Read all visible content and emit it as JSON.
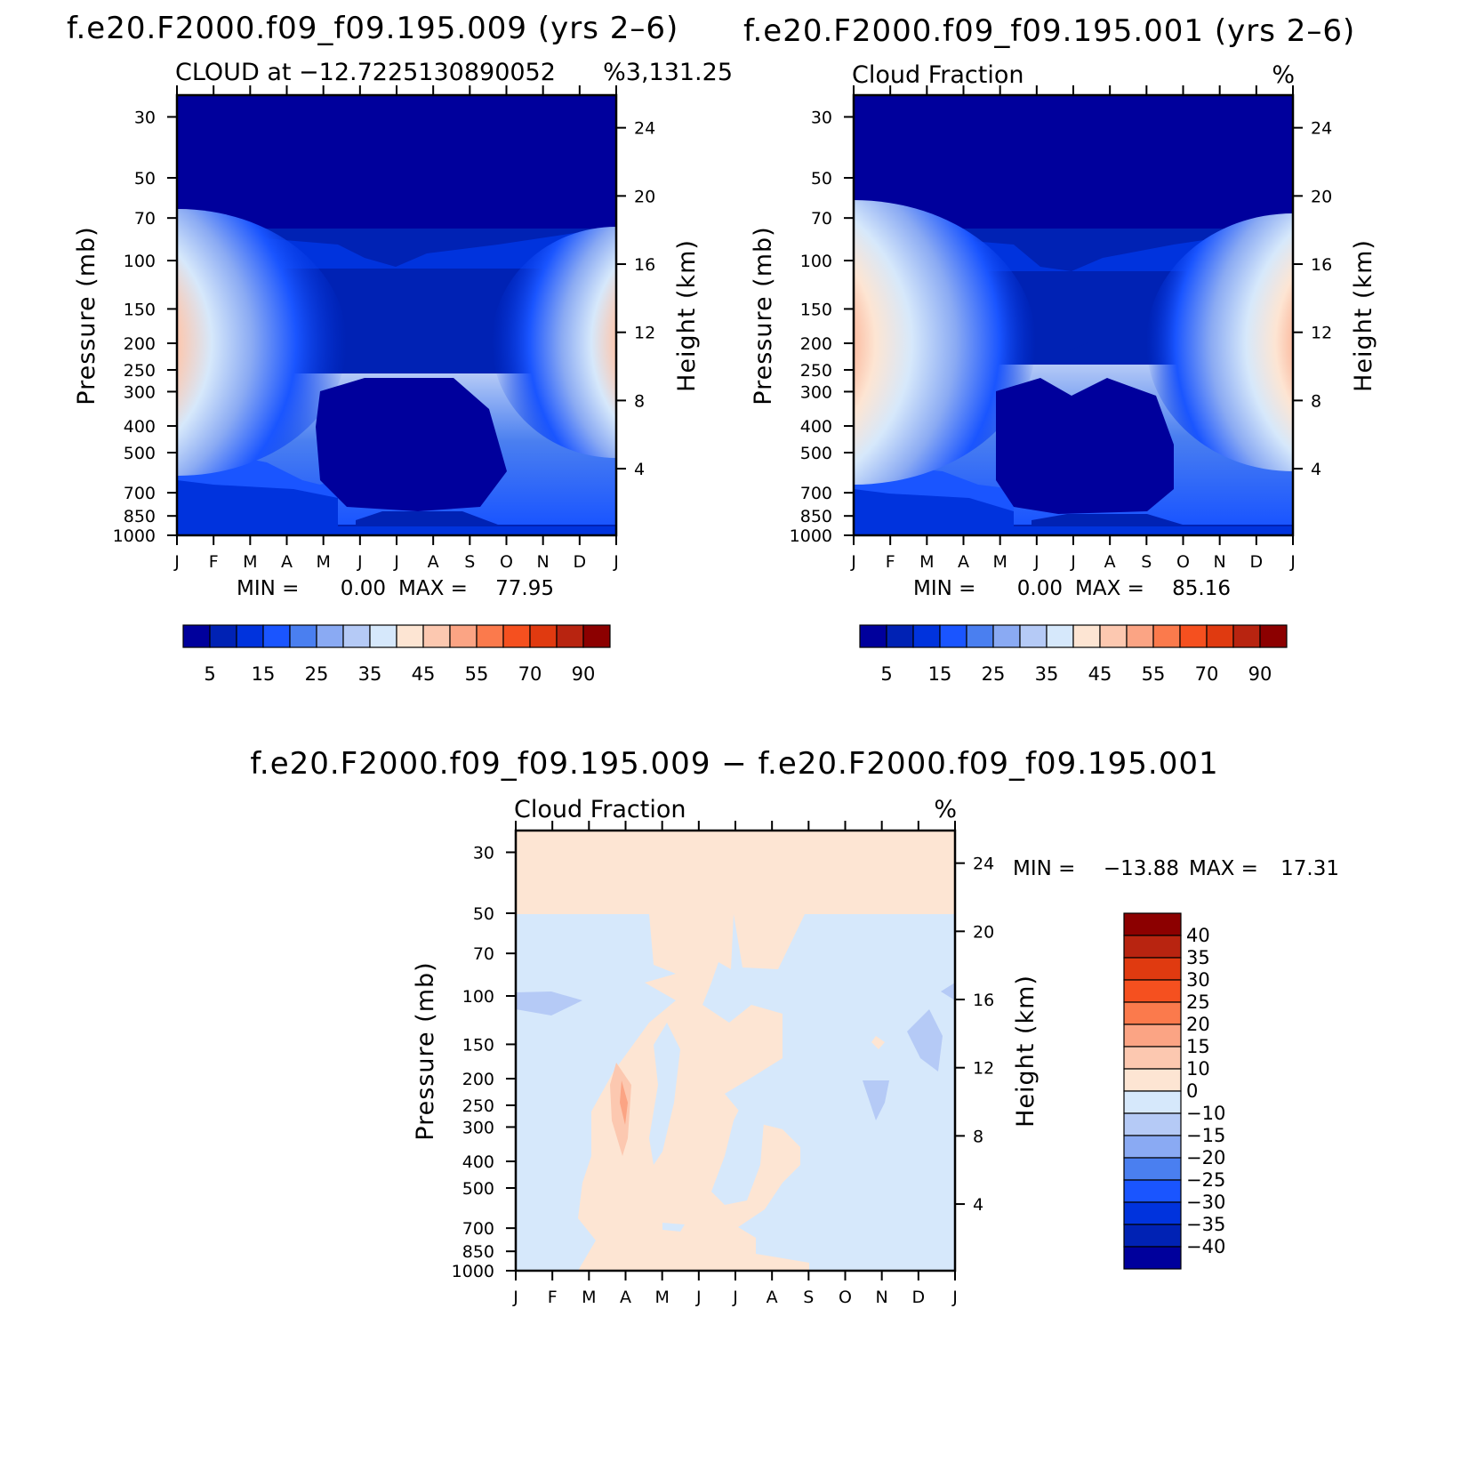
{
  "colors": {
    "pos_levels": [
      "#00009c",
      "#0022b4",
      "#0033dd",
      "#1a55ff",
      "#4a7ff0",
      "#8aaaf3",
      "#b5caf6",
      "#d6e8fb",
      "#fde5d3",
      "#fcc8b0",
      "#fba484",
      "#fb7a4c",
      "#f5501f",
      "#e03a10",
      "#b82410",
      "#8c0000"
    ],
    "diff_levels": [
      "#00009c",
      "#0022b4",
      "#0033dd",
      "#1a55ff",
      "#4a7ff0",
      "#8aaaf3",
      "#b5caf6",
      "#d6e8fb",
      "#fde5d3",
      "#fcc8b0",
      "#fba484",
      "#fb7a4c",
      "#f5501f",
      "#e03a10",
      "#b82410",
      "#8c0000"
    ]
  },
  "chart_data": [
    {
      "type": "heatmap",
      "title": "f.e20.F2000.f09_f09.195.009 (yrs 2–6)",
      "left_label": "CLOUD at −12.7225130890052",
      "right_label": "%3,131.25",
      "ylabel": "Pressure (mb)",
      "y2label": "Height (km)",
      "months": [
        "J",
        "F",
        "M",
        "A",
        "M",
        "J",
        "J",
        "A",
        "S",
        "O",
        "N",
        "D",
        "J"
      ],
      "pressure_ticks": [
        "30",
        "50",
        "70",
        "100",
        "150",
        "200",
        "250",
        "300",
        "400",
        "500",
        "700",
        "850",
        "1000"
      ],
      "height_ticks": [
        "24",
        "20",
        "16",
        "12",
        "8",
        "4"
      ],
      "min_label": "MIN =",
      "min_value": "0.00",
      "max_label": "MAX =",
      "max_value": "77.95",
      "colorbar_labels": [
        "5",
        "15",
        "25",
        "35",
        "45",
        "55",
        "70",
        "90"
      ],
      "high_cloud_peak": 77.95,
      "high_cloud_level_mb": 180,
      "min_value_num": 0.0
    },
    {
      "type": "heatmap",
      "title": "f.e20.F2000.f09_f09.195.001 (yrs 2–6)",
      "left_label": "Cloud Fraction",
      "right_label": "%",
      "ylabel": "Pressure (mb)",
      "y2label": "Height (km)",
      "months": [
        "J",
        "F",
        "M",
        "A",
        "M",
        "J",
        "J",
        "A",
        "S",
        "O",
        "N",
        "D",
        "J"
      ],
      "pressure_ticks": [
        "30",
        "50",
        "70",
        "100",
        "150",
        "200",
        "250",
        "300",
        "400",
        "500",
        "700",
        "850",
        "1000"
      ],
      "height_ticks": [
        "24",
        "20",
        "16",
        "12",
        "8",
        "4"
      ],
      "min_label": "MIN =",
      "min_value": "0.00",
      "max_label": "MAX =",
      "max_value": "85.16",
      "colorbar_labels": [
        "5",
        "15",
        "25",
        "35",
        "45",
        "55",
        "70",
        "90"
      ],
      "high_cloud_peak": 85.16,
      "high_cloud_level_mb": 180,
      "min_value_num": 0.0
    },
    {
      "type": "heatmap",
      "title": "f.e20.F2000.f09_f09.195.009 − f.e20.F2000.f09_f09.195.001",
      "left_label": "Cloud Fraction",
      "right_label": "%",
      "ylabel": "Pressure (mb)",
      "y2label": "Height (km)",
      "months": [
        "J",
        "F",
        "M",
        "A",
        "M",
        "J",
        "J",
        "A",
        "S",
        "O",
        "N",
        "D",
        "J"
      ],
      "pressure_ticks": [
        "30",
        "50",
        "70",
        "100",
        "150",
        "200",
        "250",
        "300",
        "400",
        "500",
        "700",
        "850",
        "1000"
      ],
      "height_ticks": [
        "24",
        "20",
        "16",
        "12",
        "8",
        "4"
      ],
      "min_label": "MIN =",
      "min_value": "−13.88",
      "max_label": "MAX =",
      "max_value": "17.31",
      "colorbar_labels": [
        "40",
        "35",
        "30",
        "25",
        "20",
        "15",
        "10",
        "0",
        "−10",
        "−15",
        "−20",
        "−25",
        "−30",
        "−35",
        "−40"
      ]
    }
  ]
}
